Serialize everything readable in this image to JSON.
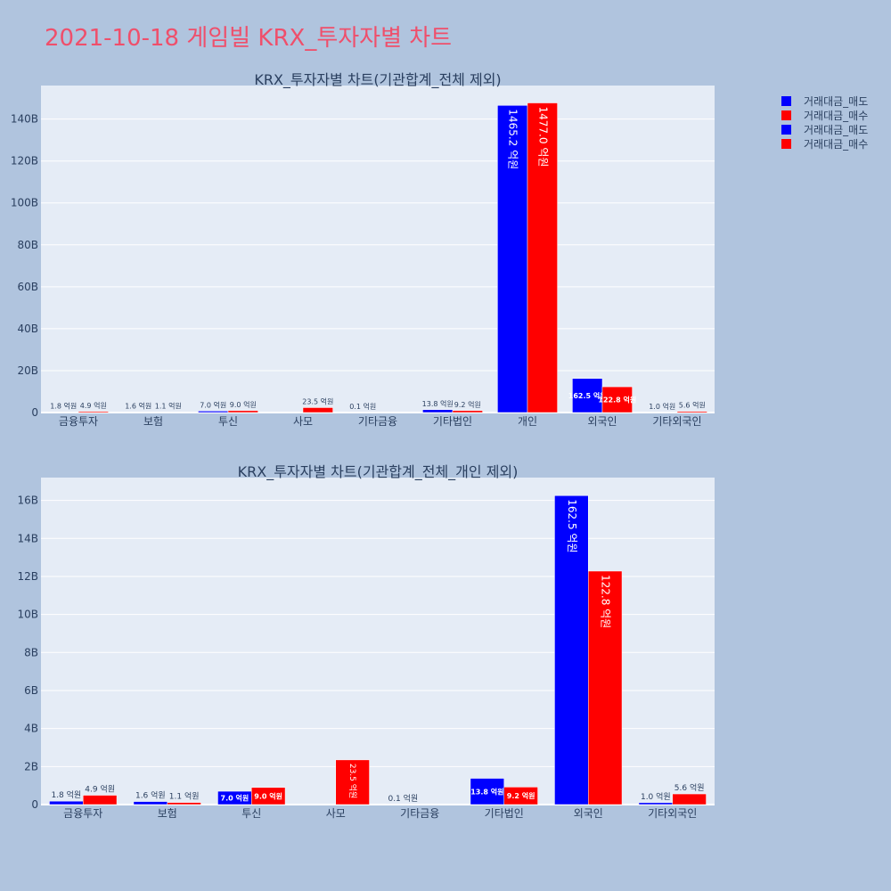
{
  "title": "2021-10-18 게임빌 KRX_투자자별 차트",
  "legend": [
    {
      "label": "거래대금_매도",
      "color": "#0000ff"
    },
    {
      "label": "거래대금_매수",
      "color": "#ff0000"
    },
    {
      "label": "거래대금_매도",
      "color": "#0000ff"
    },
    {
      "label": "거래대금_매수",
      "color": "#ff0000"
    }
  ],
  "chart_data": [
    {
      "type": "bar",
      "title": "KRX_투자자별 차트(기관합계_전체 제외)",
      "categories": [
        "금융투자",
        "보험",
        "투신",
        "사모",
        "기타금융",
        "기타법인",
        "개인",
        "외국인",
        "기타외국인"
      ],
      "series": [
        {
          "name": "거래대금_매도",
          "color": "#0000ff",
          "values": [
            0.18,
            0.16,
            0.7,
            0,
            0.01,
            1.38,
            146.52,
            16.25,
            0.1
          ],
          "labels": [
            "1.8 억원",
            "1.6 억원",
            "7.0 억원",
            "",
            "0.1 억원",
            "13.8 억원",
            "1465.2 억원",
            "162.5 억원",
            "1.0 억원"
          ]
        },
        {
          "name": "거래대금_매수",
          "color": "#ff0000",
          "values": [
            0.49,
            0.11,
            0.9,
            2.35,
            0,
            0.92,
            147.7,
            12.28,
            0.56
          ],
          "labels": [
            "4.9 억원",
            "1.1 억원",
            "9.0 억원",
            "23.5 억원",
            "",
            "9.2 억원",
            "1477.0 억원",
            "122.8 억원",
            "5.6 억원"
          ]
        }
      ],
      "yunit": "B",
      "ylim": [
        0,
        156
      ],
      "yticks": [
        0,
        20,
        40,
        60,
        80,
        100,
        120,
        140
      ],
      "grid": true,
      "legend_position": "top-right"
    },
    {
      "type": "bar",
      "title": "KRX_투자자별 차트(기관합계_전체_개인 제외)",
      "categories": [
        "금융투자",
        "보험",
        "투신",
        "사모",
        "기타금융",
        "기타법인",
        "외국인",
        "기타외국인"
      ],
      "series": [
        {
          "name": "거래대금_매도",
          "color": "#0000ff",
          "values": [
            0.18,
            0.16,
            0.7,
            0,
            0.01,
            1.38,
            16.25,
            0.1
          ],
          "labels": [
            "1.8 억원",
            "1.6 억원",
            "7.0 억원",
            "",
            "0.1 억원",
            "13.8 억원",
            "162.5 억원",
            "1.0 억원"
          ]
        },
        {
          "name": "거래대금_매수",
          "color": "#ff0000",
          "values": [
            0.49,
            0.11,
            0.9,
            2.35,
            0,
            0.92,
            12.28,
            0.56
          ],
          "labels": [
            "4.9 억원",
            "1.1 억원",
            "9.0 억원",
            "23.5 억원",
            "",
            "9.2 억원",
            "122.8 억원",
            "5.6 억원"
          ]
        }
      ],
      "yunit": "B",
      "ylim": [
        0,
        17.2
      ],
      "yticks": [
        0,
        2,
        4,
        6,
        8,
        10,
        12,
        14,
        16
      ],
      "grid": true,
      "legend_position": "top-right"
    }
  ]
}
